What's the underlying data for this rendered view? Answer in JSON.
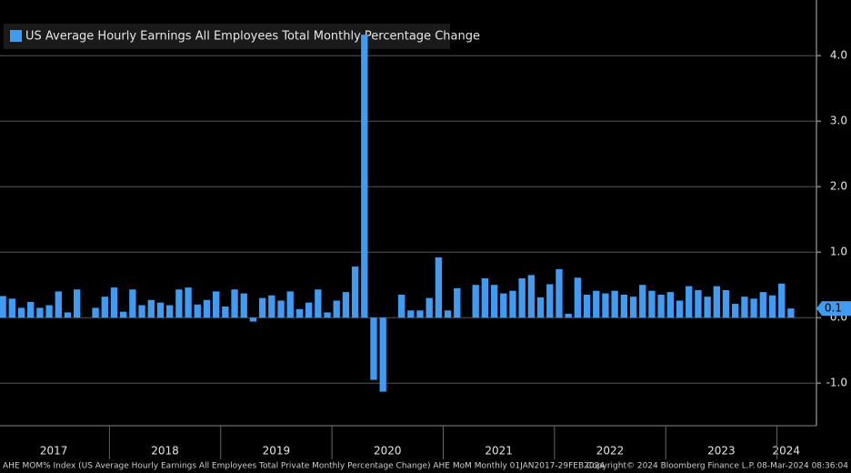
{
  "chart_data": {
    "type": "bar",
    "legend_label": "US Average Hourly Earnings All Employees Total Monthly Percentage Change",
    "color": "#3f9cf2",
    "categories": [
      "2017",
      null,
      null,
      null,
      null,
      null,
      null,
      null,
      null,
      null,
      null,
      null,
      "2018",
      null,
      null,
      null,
      null,
      null,
      null,
      null,
      null,
      null,
      null,
      null,
      "2019",
      null,
      null,
      null,
      null,
      null,
      null,
      null,
      null,
      null,
      null,
      null,
      "2020",
      null,
      null,
      null,
      null,
      null,
      null,
      null,
      null,
      null,
      null,
      null,
      "2021",
      null,
      null,
      null,
      null,
      null,
      null,
      null,
      null,
      null,
      null,
      null,
      "2022",
      null,
      null,
      null,
      null,
      null,
      null,
      null,
      null,
      null,
      null,
      null,
      "2023",
      null,
      null,
      null,
      null,
      null,
      null,
      null,
      null,
      null,
      null,
      null,
      "2024",
      null
    ],
    "values": [
      0.33,
      0.29,
      0.15,
      0.24,
      0.15,
      0.19,
      0.4,
      0.08,
      0.43,
      0.0,
      0.15,
      0.32,
      0.46,
      0.09,
      0.43,
      0.19,
      0.27,
      0.23,
      0.19,
      0.43,
      0.46,
      0.2,
      0.27,
      0.4,
      0.17,
      0.43,
      0.37,
      -0.06,
      0.3,
      0.34,
      0.26,
      0.4,
      0.13,
      0.23,
      0.43,
      0.08,
      0.26,
      0.39,
      0.78,
      4.32,
      -0.95,
      -1.13,
      0.0,
      0.35,
      0.11,
      0.11,
      0.3,
      0.92,
      0.11,
      0.45,
      0.0,
      0.5,
      0.6,
      0.5,
      0.37,
      0.41,
      0.6,
      0.65,
      0.31,
      0.51,
      0.74,
      0.06,
      0.61,
      0.35,
      0.41,
      0.37,
      0.41,
      0.35,
      0.32,
      0.5,
      0.41,
      0.35,
      0.39,
      0.26,
      0.48,
      0.42,
      0.32,
      0.48,
      0.42,
      0.21,
      0.32,
      0.29,
      0.39,
      0.34,
      0.52,
      0.14
    ],
    "last_value_label": "0.1",
    "ylim": [
      -1.65,
      4.85
    ],
    "yticks": [
      {
        "value": -1,
        "label": "-1.0"
      },
      {
        "value": 0,
        "label": "0.0"
      },
      {
        "value": 1,
        "label": "1.0"
      },
      {
        "value": 2,
        "label": "2.0"
      },
      {
        "value": 3,
        "label": "3.0"
      },
      {
        "value": 4,
        "label": "4.0"
      }
    ],
    "grid": true,
    "footer": {
      "left": "AHE MOM% Index (US Average Hourly Earnings All Employees Total Private Monthly Percentage Change) AHE MoM  Monthly 01JAN2017-29FEB2024",
      "center": "Copyright© 2024 Bloomberg Finance L.P.",
      "right": "08-Mar-2024 08:36:04"
    }
  }
}
